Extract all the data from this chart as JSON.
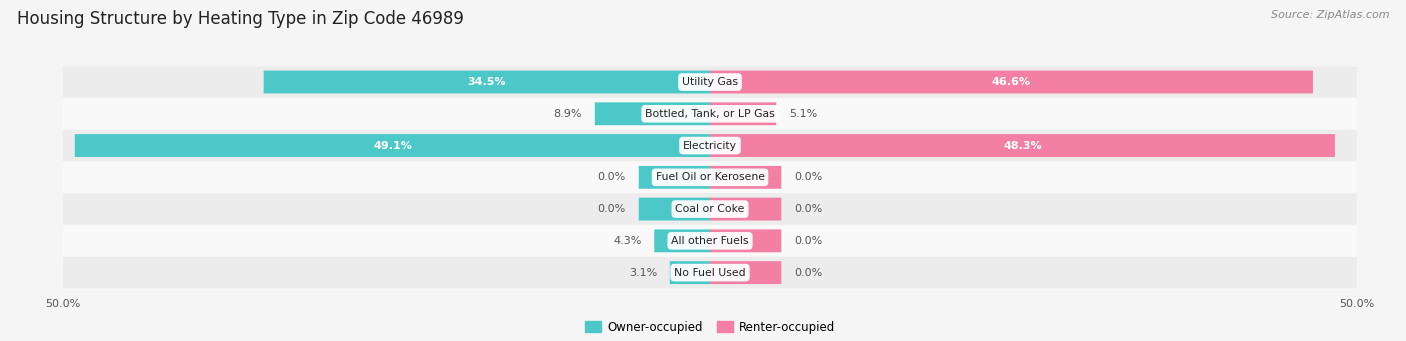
{
  "title": "Housing Structure by Heating Type in Zip Code 46989",
  "source": "Source: ZipAtlas.com",
  "categories": [
    "Utility Gas",
    "Bottled, Tank, or LP Gas",
    "Electricity",
    "Fuel Oil or Kerosene",
    "Coal or Coke",
    "All other Fuels",
    "No Fuel Used"
  ],
  "owner_values": [
    34.5,
    8.9,
    49.1,
    0.0,
    0.0,
    4.3,
    3.1
  ],
  "renter_values": [
    46.6,
    5.1,
    48.3,
    0.0,
    0.0,
    0.0,
    0.0
  ],
  "owner_color": "#4DC8C8",
  "renter_color": "#F47FA4",
  "axis_max": 50.0,
  "background_color": "#f5f5f5",
  "row_colors": [
    "#ececec",
    "#f9f9f9",
    "#ececec",
    "#f9f9f9",
    "#ececec",
    "#f9f9f9",
    "#ececec"
  ],
  "title_fontsize": 12,
  "source_fontsize": 8,
  "stub_size": 5.5
}
